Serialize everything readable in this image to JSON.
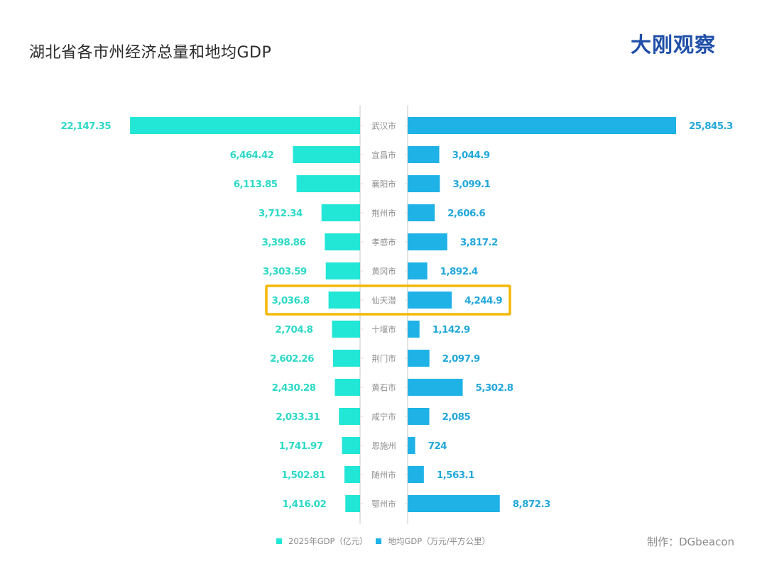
{
  "header": {
    "title": "湖北省各市州经济总量和地均GDP",
    "logo_text": "大刚观察"
  },
  "footer": {
    "credit": "制作：DGbeacon"
  },
  "colors": {
    "gdp": "#22e6d6",
    "gdp_label": "#2ed9c8",
    "density": "#1fb2e6",
    "density_label": "#23a8da",
    "highlight": "#f5b800",
    "axis": "#d9d9d9",
    "city_label": "#8f8f8f",
    "logo": "#1f4fa8"
  },
  "chart_data": {
    "type": "bar",
    "orientation": "horizontal-butterfly",
    "title": "湖北省各市州经济总量和地均GDP",
    "categories": [
      "武汉市",
      "宜昌市",
      "襄阳市",
      "荆州市",
      "孝感市",
      "黄冈市",
      "仙天潜",
      "十堰市",
      "荆门市",
      "黄石市",
      "咸宁市",
      "恩施州",
      "随州市",
      "鄂州市"
    ],
    "series": [
      {
        "name": "2025年GDP（亿元）",
        "side": "left",
        "values": [
          22147.35,
          6464.42,
          6113.85,
          3712.34,
          3398.86,
          3303.59,
          3036.8,
          2704.8,
          2602.26,
          2430.28,
          2033.31,
          1741.97,
          1502.81,
          1416.02
        ],
        "labels": [
          "22,147.35",
          "6,464.42",
          "6,113.85",
          "3,712.34",
          "3,398.86",
          "3,303.59",
          "3,036.8",
          "2,704.8",
          "2,602.26",
          "2,430.28",
          "2,033.31",
          "1,741.97",
          "1,502.81",
          "1,416.02"
        ]
      },
      {
        "name": "地均GDP（万元/平方公里）",
        "side": "right",
        "values": [
          25845.3,
          3044.9,
          3099.1,
          2606.6,
          3817.2,
          1892.4,
          4244.9,
          1142.9,
          2097.9,
          5302.8,
          2085,
          724,
          1563.1,
          8872.3
        ],
        "labels": [
          "25,845.3",
          "3,044.9",
          "3,099.1",
          "2,606.6",
          "3,817.2",
          "1,892.4",
          "4,244.9",
          "1,142.9",
          "2,097.9",
          "5,302.8",
          "2,085",
          "724",
          "1,563.1",
          "8,872.3"
        ]
      }
    ],
    "highlighted_category": "仙天潜",
    "legend_position": "bottom-center",
    "grid": false
  }
}
